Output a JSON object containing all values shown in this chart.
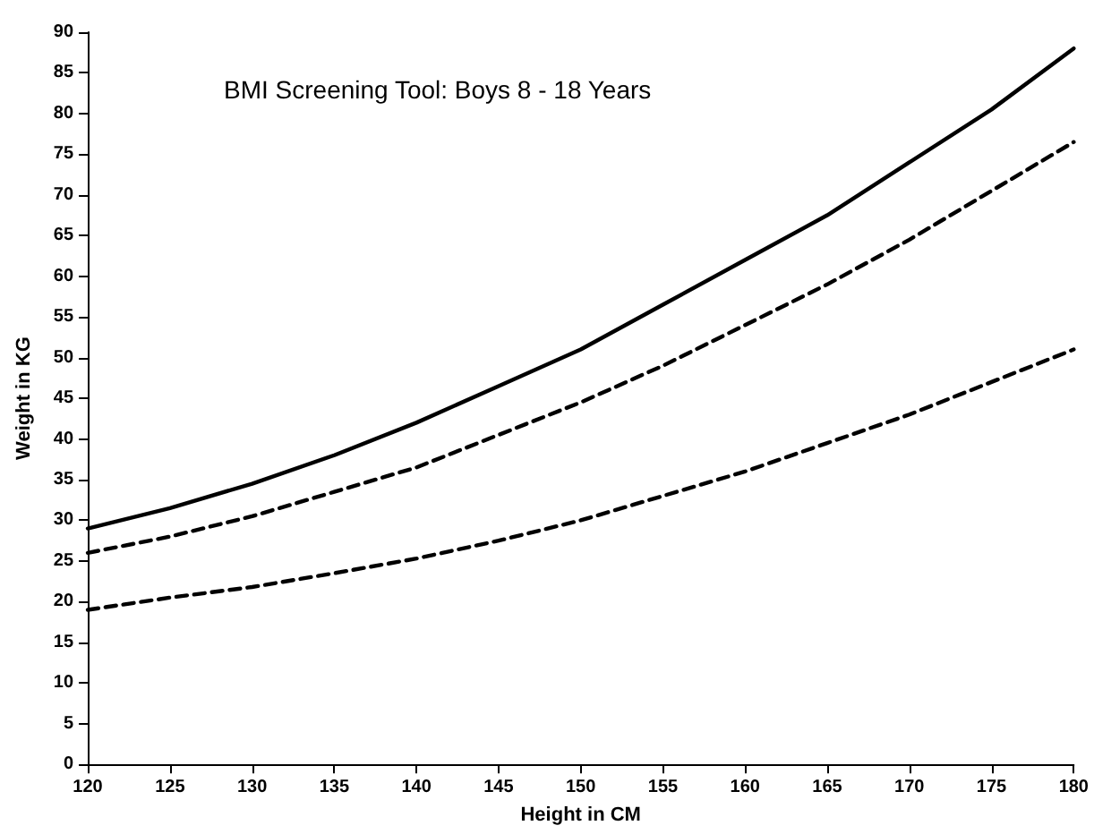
{
  "chart_data": {
    "type": "line",
    "title": "BMI Screening Tool: Boys 8 - 18 Years",
    "xlabel": "Height in CM",
    "ylabel": "Weight in KG",
    "x": [
      120,
      125,
      130,
      135,
      140,
      145,
      150,
      155,
      160,
      165,
      170,
      175,
      180
    ],
    "series": [
      {
        "color": "#000000",
        "line_style": "solid",
        "values": [
          29,
          31.5,
          34.5,
          38,
          42,
          46.5,
          51,
          56.5,
          62,
          67.5,
          74,
          80.5,
          88
        ]
      },
      {
        "color": "#000000",
        "line_style": "dashed",
        "values": [
          26,
          28,
          30.5,
          33.5,
          36.5,
          40.5,
          44.5,
          49,
          54,
          59,
          64.5,
          70.5,
          76.5
        ]
      },
      {
        "color": "#000000",
        "line_style": "dashed",
        "values": [
          19,
          20.5,
          21.8,
          23.5,
          25.3,
          27.5,
          30,
          33,
          36,
          39.5,
          43,
          47,
          51
        ]
      }
    ],
    "xlim": [
      120,
      180
    ],
    "xticks": [
      120,
      125,
      130,
      135,
      140,
      145,
      150,
      155,
      160,
      165,
      170,
      175,
      180
    ],
    "ylim": [
      0,
      90
    ],
    "yticks": [
      0,
      5,
      10,
      15,
      20,
      25,
      30,
      35,
      40,
      45,
      50,
      55,
      60,
      65,
      70,
      75,
      80,
      85,
      90
    ],
    "marker": "none"
  }
}
